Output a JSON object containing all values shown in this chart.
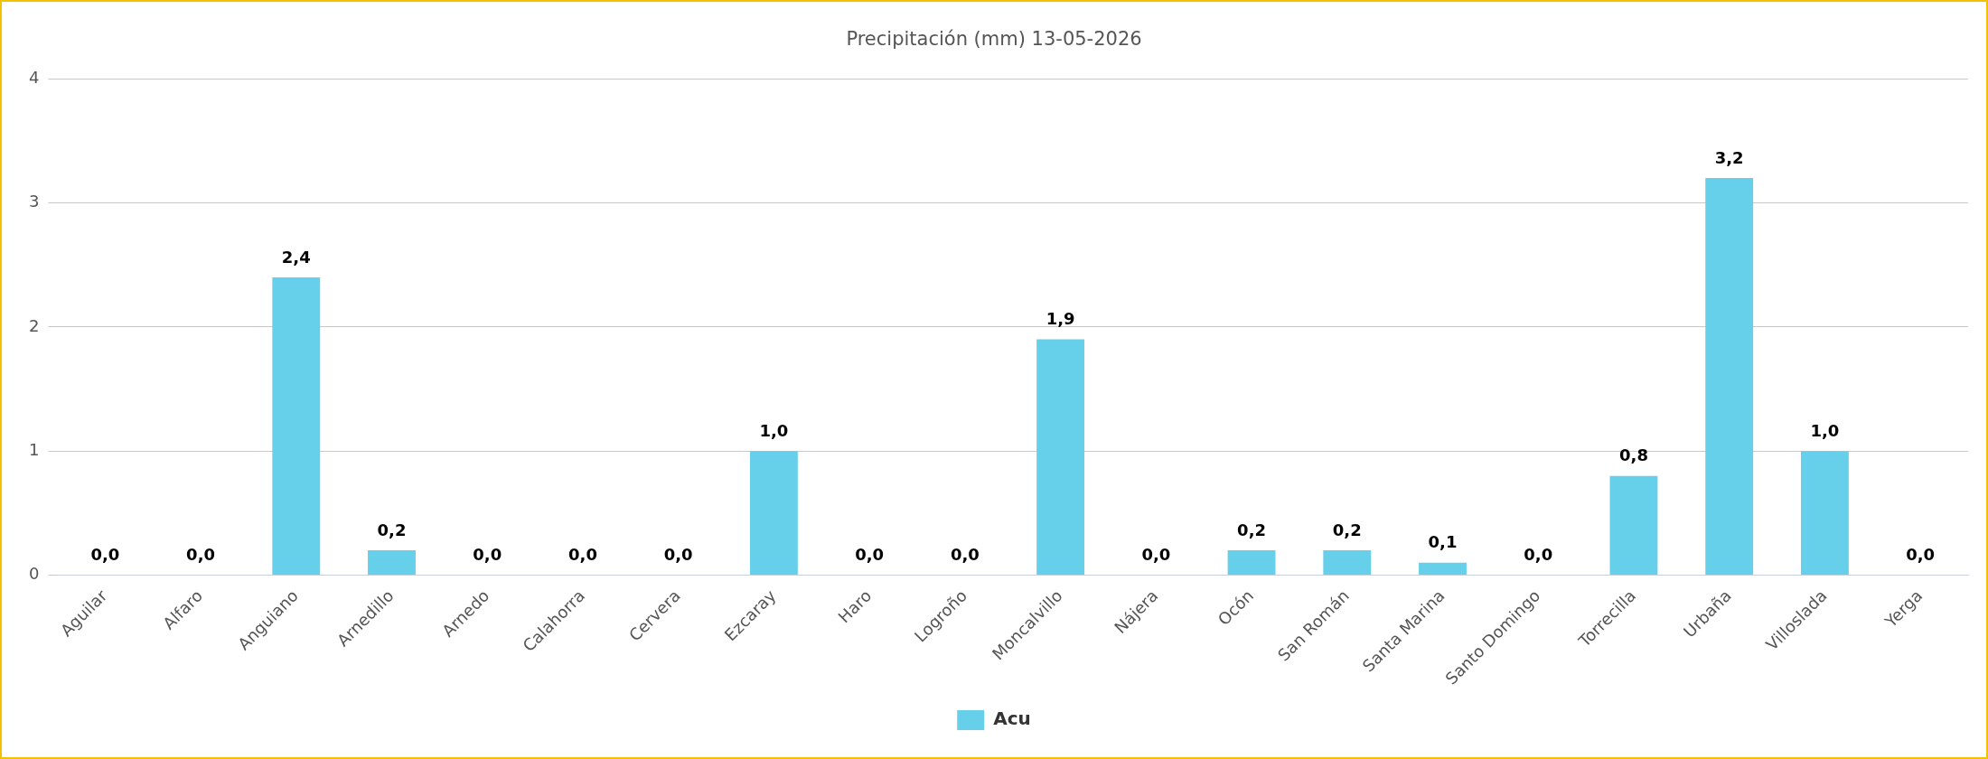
{
  "chart_data": {
    "type": "bar",
    "title": "Precipitación (mm) 13-05-2026",
    "categories": [
      "Aguilar",
      "Alfaro",
      "Anguiano",
      "Arnedillo",
      "Arnedo",
      "Calahorra",
      "Cervera",
      "Ezcaray",
      "Haro",
      "Logroño",
      "Moncalvillo",
      "Nájera",
      "Ocón",
      "San Román",
      "Santa Marina",
      "Santo Domingo",
      "Torrecilla",
      "Urbaña",
      "Villoslada",
      "Yerga"
    ],
    "series": [
      {
        "name": "Acu",
        "color": "#66cfea",
        "values": [
          0,
          0,
          2.4,
          0.2,
          0,
          0,
          0,
          1.0,
          0,
          0,
          1.9,
          0,
          0.2,
          0.2,
          0.1,
          0,
          0.8,
          3.2,
          1.0,
          0
        ],
        "value_labels": [
          "0,0",
          "0,0",
          "2,4",
          "0,2",
          "0,0",
          "0,0",
          "0,0",
          "1,0",
          "0,0",
          "0,0",
          "1,9",
          "0,0",
          "0,2",
          "0,2",
          "0,1",
          "0,0",
          "0,8",
          "3,2",
          "1,0",
          "0,0"
        ]
      }
    ],
    "ylim": [
      0,
      4
    ],
    "yticks": [
      0,
      1,
      2,
      3,
      4
    ],
    "grid": "y",
    "legend": "bottom"
  }
}
